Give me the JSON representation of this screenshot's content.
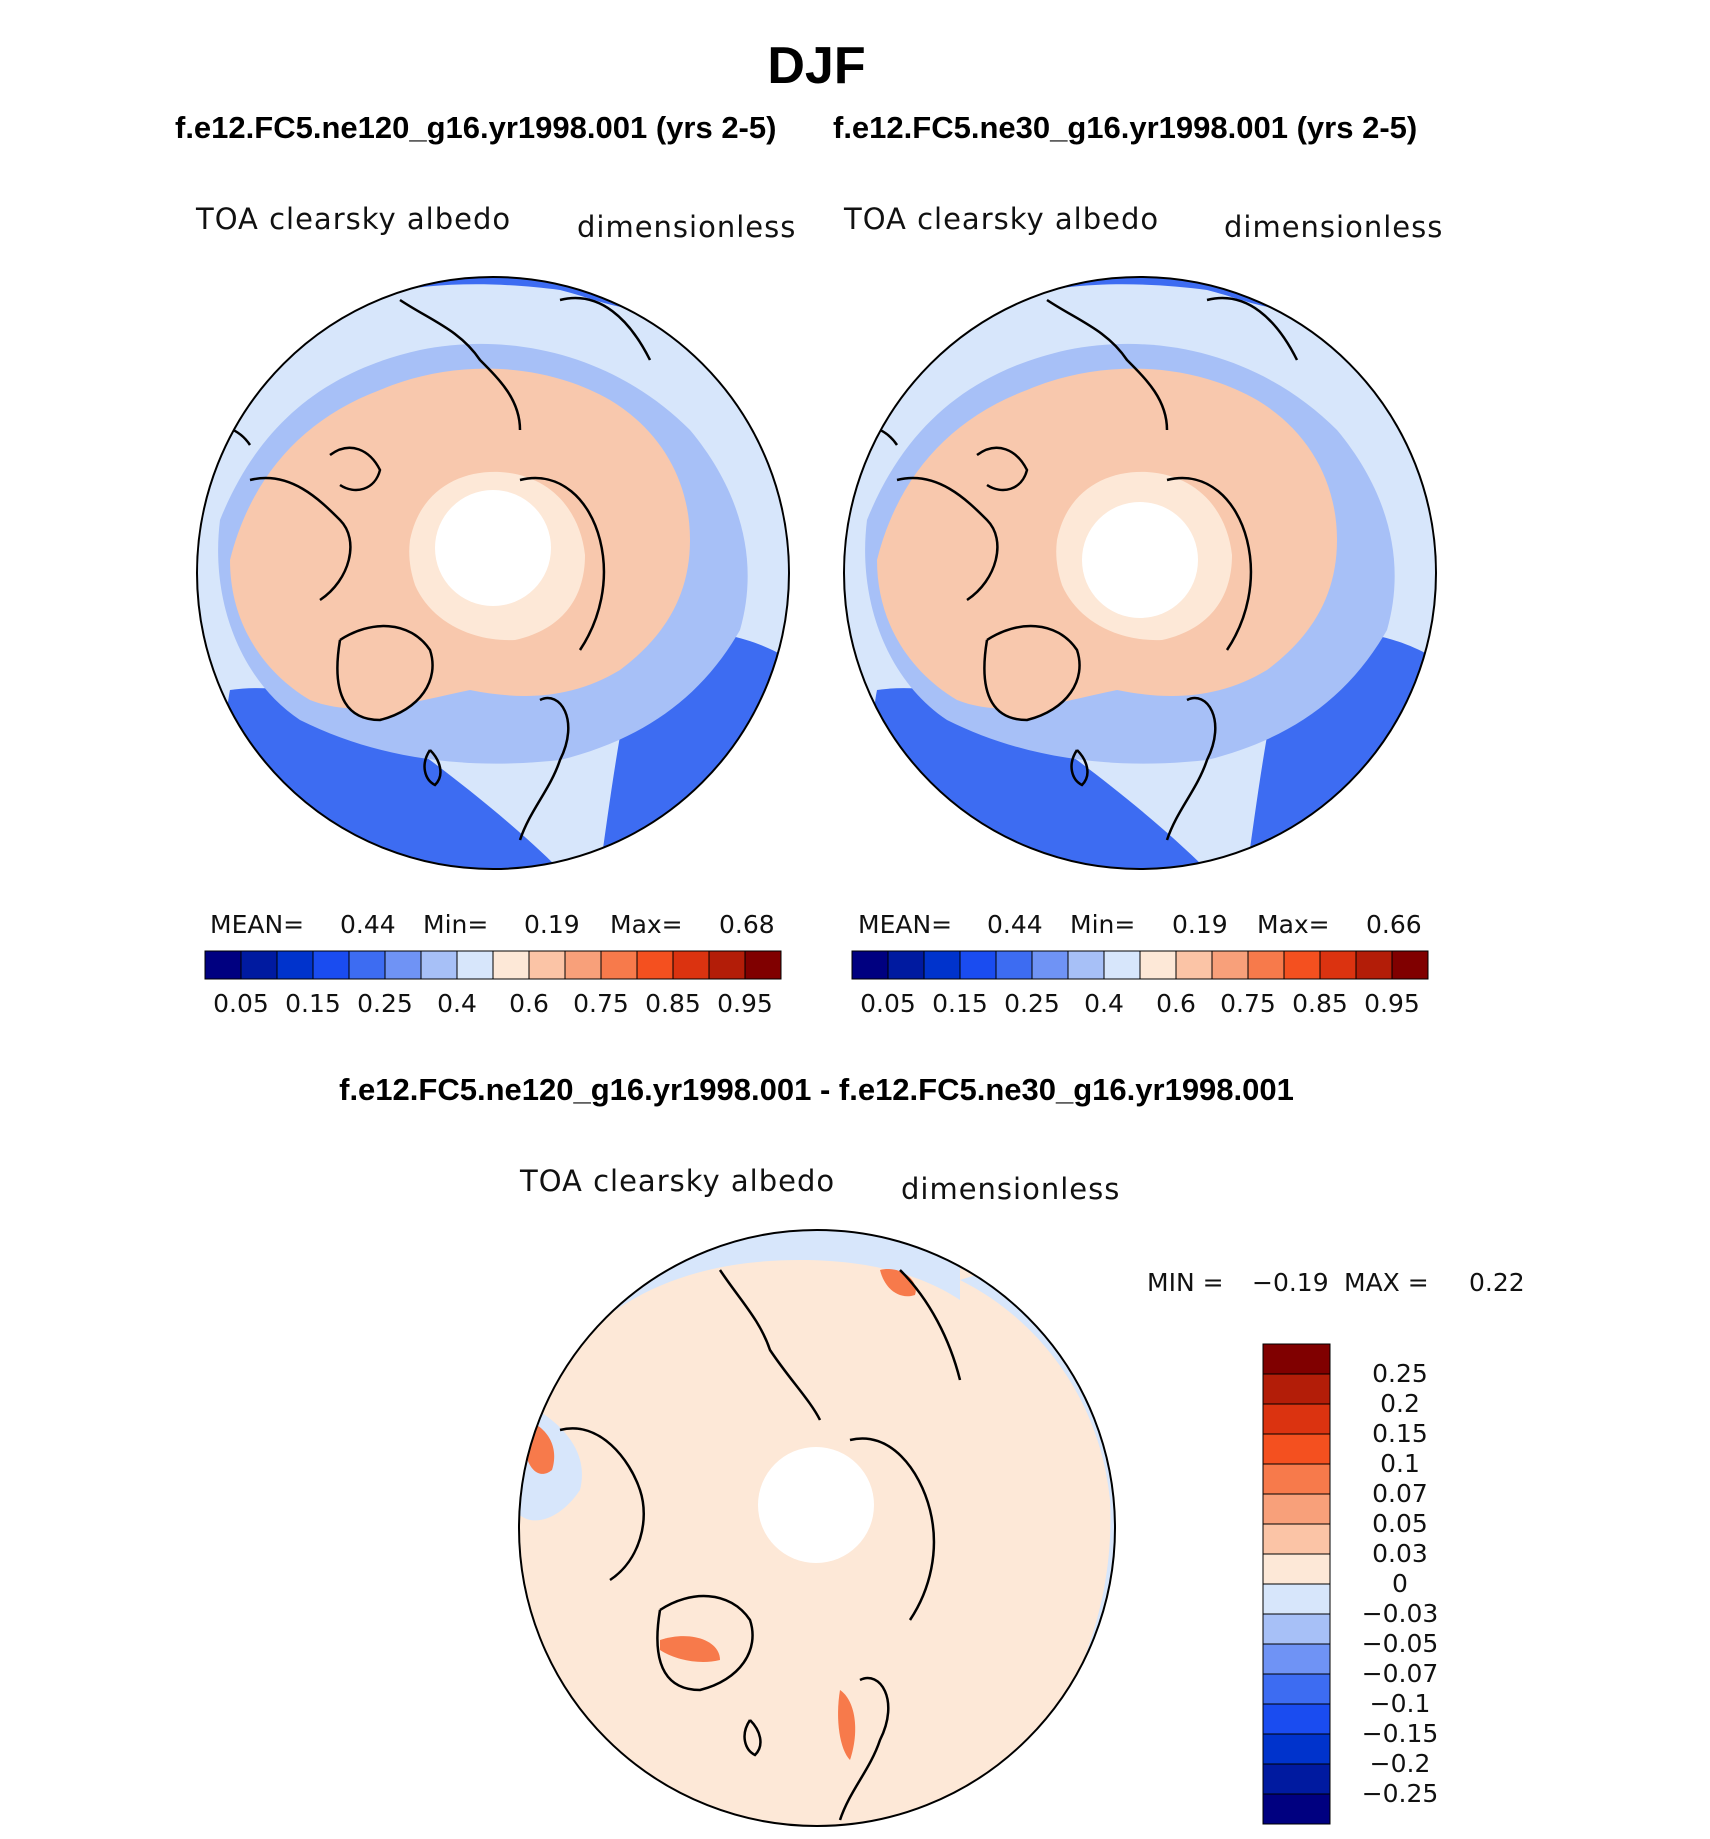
{
  "figure": {
    "season": "DJF",
    "diff_title": "f.e12.FC5.ne120_g16.yr1998.001 - f.e12.FC5.ne30_g16.yr1998.001"
  },
  "panels": [
    {
      "case": "f.e12.FC5.ne120_g16.yr1998.001 (yrs 2-5)",
      "variable": "TOA clearsky albedo",
      "units": "dimensionless",
      "mean_label": "MEAN=",
      "mean": "0.44",
      "min_label": "Min=",
      "min": "0.19",
      "max_label": "Max=",
      "max": "0.68"
    },
    {
      "case": "f.e12.FC5.ne30_g16.yr1998.001 (yrs 2-5)",
      "variable": "TOA clearsky albedo",
      "units": "dimensionless",
      "mean_label": "MEAN=",
      "mean": "0.44",
      "min_label": "Min=",
      "min": "0.19",
      "max_label": "Max=",
      "max": "0.66"
    }
  ],
  "diff_panel": {
    "variable": "TOA clearsky albedo",
    "units": "dimensionless",
    "min_label": "MIN =",
    "min": "−0.19",
    "max_label": "MAX =",
    "max": "0.22"
  },
  "colorbar_main": {
    "colors": [
      "#000080",
      "#001aa0",
      "#0033cc",
      "#1a4cf0",
      "#3d6cf2",
      "#6f93f5",
      "#a7c0f7",
      "#d7e6fb",
      "#fde8d7",
      "#fbc4a6",
      "#f8a07a",
      "#f77a4b",
      "#f4501f",
      "#db3310",
      "#b31d08",
      "#800000"
    ],
    "tick_labels": [
      "0.05",
      "0.15",
      "0.25",
      "0.4",
      "0.6",
      "0.75",
      "0.85",
      "0.95"
    ]
  },
  "colorbar_diff": {
    "colors": [
      "#800000",
      "#b31d08",
      "#db3310",
      "#f4501f",
      "#f77a4b",
      "#f8a07a",
      "#fbc4a6",
      "#fde8d7",
      "#d7e6fb",
      "#a7c0f7",
      "#6f93f5",
      "#3d6cf2",
      "#1a4cf0",
      "#0033cc",
      "#001aa0",
      "#000080"
    ],
    "tick_labels": [
      "0.25",
      "0.2",
      "0.15",
      "0.1",
      "0.07",
      "0.05",
      "0.03",
      "0",
      "−0.03",
      "−0.05",
      "−0.07",
      "−0.1",
      "−0.15",
      "−0.2",
      "−0.25"
    ]
  },
  "colors": {
    "land": "#f8c8ad",
    "arctic_low": "#fde8d7",
    "ocean_light": "#d7e6fb",
    "ocean_mid": "#a7c0f7",
    "ocean_deep": "#3d6cf2",
    "diff_base": "#fde8d7",
    "diff_neg": "#d7e6fb",
    "diff_pos": "#f77a4b"
  }
}
